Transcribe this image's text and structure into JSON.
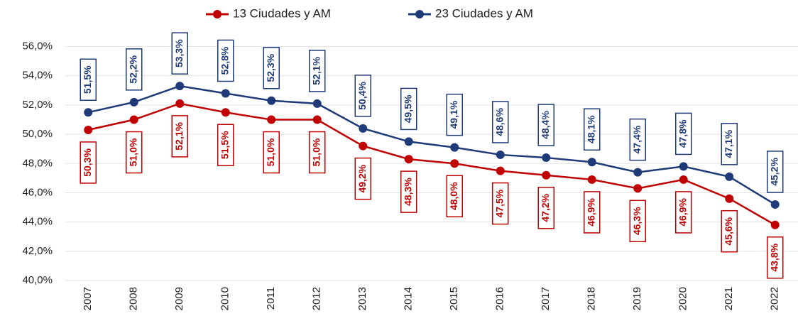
{
  "chart_data": {
    "type": "line",
    "categories": [
      "2007",
      "2008",
      "2009",
      "2010",
      "2011",
      "2012",
      "2013",
      "2014",
      "2015",
      "2016",
      "2017",
      "2018",
      "2019",
      "2020",
      "2021",
      "2022"
    ],
    "series": [
      {
        "name": "13 Ciudades y AM",
        "color": "#c00000",
        "values": [
          50.3,
          51.0,
          52.1,
          51.5,
          51.0,
          51.0,
          49.2,
          48.3,
          48.0,
          47.5,
          47.2,
          46.9,
          46.3,
          46.9,
          45.6,
          43.8
        ],
        "value_labels": [
          "50,3%",
          "51,0%",
          "52,1%",
          "51,5%",
          "51,0%",
          "51,0%",
          "49,2%",
          "48,3%",
          "48,0%",
          "47,5%",
          "47,2%",
          "46,9%",
          "46,3%",
          "46,9%",
          "45,6%",
          "43,8%"
        ]
      },
      {
        "name": "23 Ciudades y AM",
        "color": "#1f3a78",
        "values": [
          51.5,
          52.2,
          53.3,
          52.8,
          52.3,
          52.1,
          50.4,
          49.5,
          49.1,
          48.6,
          48.4,
          48.1,
          47.4,
          47.8,
          47.1,
          45.2
        ],
        "value_labels": [
          "51,5%",
          "52,2%",
          "53,3%",
          "52,8%",
          "52,3%",
          "52,1%",
          "50,4%",
          "49,5%",
          "49,1%",
          "48,6%",
          "48,4%",
          "48,1%",
          "47,4%",
          "47,8%",
          "47,1%",
          "45,2%"
        ]
      }
    ],
    "ylim": [
      40,
      57
    ],
    "yticks": [
      {
        "value": 40,
        "label": "40,0%"
      },
      {
        "value": 42,
        "label": "42,0%"
      },
      {
        "value": 44,
        "label": "44,0%"
      },
      {
        "value": 46,
        "label": "46,0%"
      },
      {
        "value": 48,
        "label": "48,0%"
      },
      {
        "value": 50,
        "label": "50,0%"
      },
      {
        "value": 52,
        "label": "52,0%"
      },
      {
        "value": 54,
        "label": "54,0%"
      },
      {
        "value": 56,
        "label": "56,0%"
      }
    ],
    "grid": true,
    "legend": "top"
  }
}
